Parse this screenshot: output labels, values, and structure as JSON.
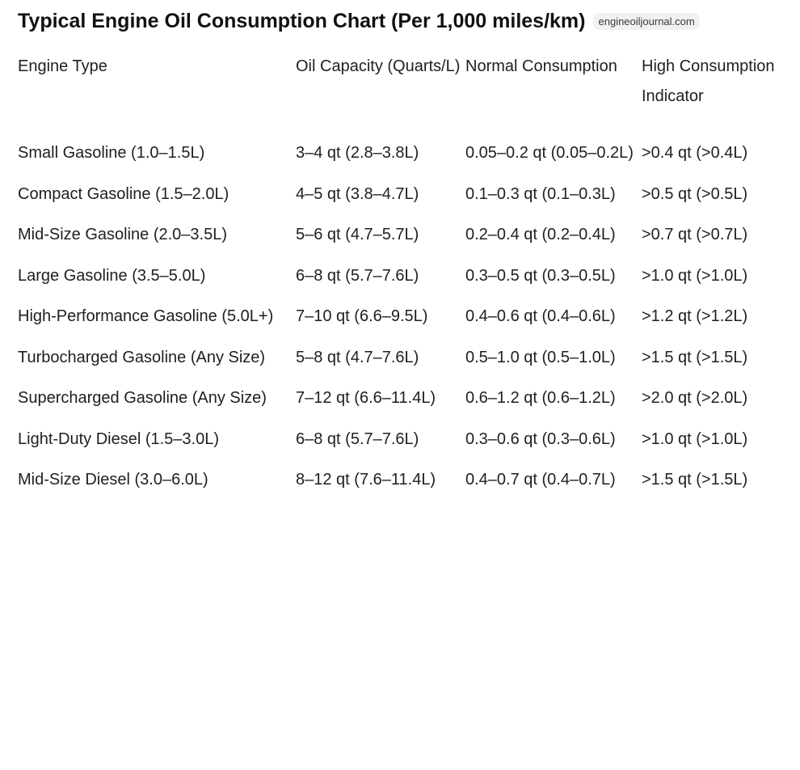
{
  "title": "Typical Engine Oil Consumption Chart (Per 1,000 miles/km)",
  "source_badge": "engineoiljournal.com",
  "table": {
    "headers": [
      "Engine Type",
      "Oil Capacity (Quarts/L)",
      "Normal Consumption",
      "High Consumption Indicator"
    ],
    "rows": [
      [
        "Small Gasoline (1.0–1.5L)",
        "3–4 qt (2.8–3.8L)",
        "0.05–0.2 qt (0.05–0.2L)",
        ">0.4 qt (>0.4L)"
      ],
      [
        "Compact Gasoline (1.5–2.0L)",
        "4–5 qt (3.8–4.7L)",
        "0.1–0.3 qt (0.1–0.3L)",
        ">0.5 qt (>0.5L)"
      ],
      [
        "Mid-Size Gasoline (2.0–3.5L)",
        "5–6 qt (4.7–5.7L)",
        "0.2–0.4 qt (0.2–0.4L)",
        ">0.7 qt (>0.7L)"
      ],
      [
        "Large Gasoline (3.5–5.0L)",
        "6–8 qt (5.7–7.6L)",
        "0.3–0.5 qt (0.3–0.5L)",
        ">1.0 qt (>1.0L)"
      ],
      [
        "High-Performance Gasoline (5.0L+)",
        "7–10 qt (6.6–9.5L)",
        "0.4–0.6 qt (0.4–0.6L)",
        ">1.2 qt (>1.2L)"
      ],
      [
        "Turbocharged Gasoline (Any Size)",
        "5–8 qt (4.7–7.6L)",
        "0.5–1.0 qt (0.5–1.0L)",
        ">1.5 qt (>1.5L)"
      ],
      [
        "Supercharged Gasoline (Any Size)",
        "7–12 qt (6.6–11.4L)",
        "0.6–1.2 qt (0.6–1.2L)",
        ">2.0 qt (>2.0L)"
      ],
      [
        "Light-Duty Diesel (1.5–3.0L)",
        "6–8 qt (5.7–7.6L)",
        "0.3–0.6 qt (0.3–0.6L)",
        ">1.0 qt (>1.0L)"
      ],
      [
        "Mid-Size Diesel (3.0–6.0L)",
        "8–12 qt (7.6–11.4L)",
        "0.4–0.7 qt (0.4–0.7L)",
        ">1.5 qt (>1.5L)"
      ]
    ]
  }
}
